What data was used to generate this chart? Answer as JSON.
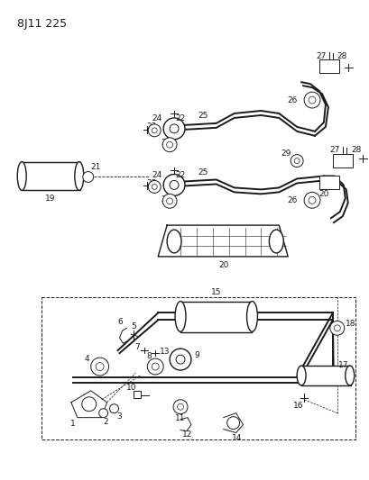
{
  "title": "8J11 225",
  "bg_color": "#ffffff",
  "line_color": "#1a1a1a",
  "title_fontsize": 9,
  "label_fontsize": 6.5,
  "figsize": [
    4.09,
    5.33
  ],
  "dpi": 100
}
